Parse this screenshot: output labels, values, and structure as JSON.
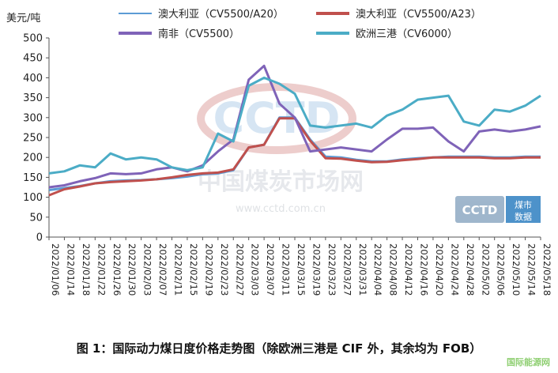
{
  "caption": "图 1：国际动力煤日度价格走势图（除欧洲三港是 CIF 外，其余均为 FOB）",
  "watermark": {
    "logo": "CCTD",
    "cn_name": "中国煤炭市场网",
    "url": "www.cctd.com.cn",
    "badge_text": "煤市数据"
  },
  "brand": "国际能源网",
  "colors": {
    "australia_a20": "#5b9bd5",
    "australia_a23": "#c0504d",
    "south_africa": "#7f63b8",
    "europe": "#4bacc6"
  },
  "chart_data": {
    "type": "line",
    "ylabel": "美元/吨",
    "ylim": [
      0,
      500
    ],
    "yticks": [
      0,
      50,
      100,
      150,
      200,
      250,
      300,
      350,
      400,
      450,
      500
    ],
    "legend_position": "top",
    "grid": false,
    "x": [
      "2022/01/06",
      "2022/01/14",
      "2022/01/18",
      "2022/01/22",
      "2022/01/26",
      "2022/01/30",
      "2022/02/03",
      "2022/02/07",
      "2022/02/11",
      "2022/02/15",
      "2022/02/19",
      "2022/02/23",
      "2022/02/27",
      "2022/03/03",
      "2022/03/07",
      "2022/03/11",
      "2022/03/15",
      "2022/03/19",
      "2022/03/23",
      "2022/03/27",
      "2022/03/31",
      "2022/04/04",
      "2022/04/08",
      "2022/04/12",
      "2022/04/16",
      "2022/04/20",
      "2022/04/24",
      "2022/04/28",
      "2022/05/02",
      "2022/05/06",
      "2022/05/10",
      "2022/05/14",
      "2022/05/18"
    ],
    "series": [
      {
        "name": "澳大利亚（CV5500/A20）",
        "color": "#5b9bd5",
        "values": [
          118,
          123,
          128,
          135,
          140,
          142,
          143,
          145,
          148,
          152,
          158,
          160,
          168,
          225,
          232,
          300,
          300,
          245,
          202,
          200,
          194,
          190,
          190,
          195,
          198,
          200,
          202,
          202,
          202,
          200,
          200,
          202,
          202
        ]
      },
      {
        "name": "澳大利亚（CV5500/A23）",
        "color": "#c0504d",
        "values": [
          105,
          120,
          127,
          135,
          138,
          140,
          142,
          145,
          150,
          156,
          160,
          162,
          170,
          225,
          232,
          298,
          298,
          242,
          198,
          197,
          192,
          188,
          189,
          193,
          196,
          200,
          200,
          200,
          200,
          198,
          198,
          200,
          200
        ]
      },
      {
        "name": "南非（CV5500）",
        "color": "#7f63b8",
        "values": [
          125,
          130,
          140,
          148,
          160,
          158,
          160,
          170,
          175,
          165,
          180,
          215,
          245,
          395,
          430,
          335,
          300,
          215,
          220,
          225,
          220,
          215,
          245,
          272,
          272,
          275,
          240,
          215,
          265,
          270,
          265,
          270,
          278
        ]
      },
      {
        "name": "欧洲三港（CV6000）",
        "color": "#4bacc6",
        "values": [
          160,
          165,
          180,
          175,
          210,
          195,
          200,
          195,
          175,
          168,
          175,
          260,
          240,
          380,
          400,
          385,
          360,
          280,
          275,
          280,
          285,
          275,
          305,
          320,
          345,
          350,
          355,
          290,
          280,
          320,
          315,
          330,
          355
        ]
      }
    ]
  }
}
